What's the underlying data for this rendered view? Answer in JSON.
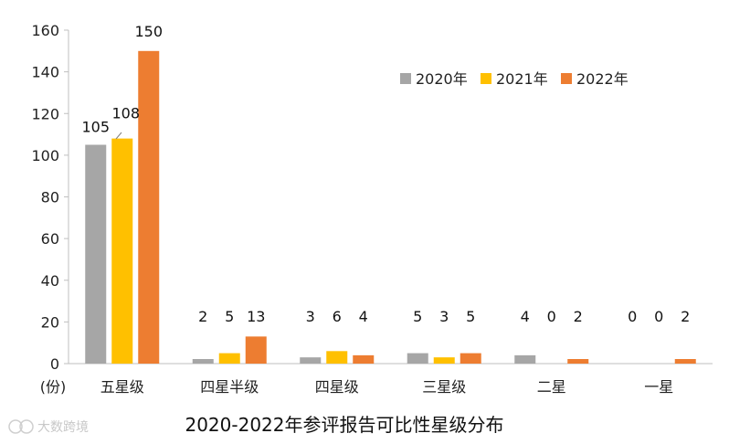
{
  "chart_data": {
    "type": "bar",
    "title": "2020-2022年参评报告可比性星级分布",
    "unit_label": "(份)",
    "categories": [
      "五星级",
      "四星半级",
      "四星级",
      "三星级",
      "二星",
      "一星"
    ],
    "series": [
      {
        "name": "2020年",
        "color": "#a6a6a6",
        "values": [
          105,
          2,
          3,
          5,
          4,
          0
        ]
      },
      {
        "name": "2021年",
        "color": "#ffc000",
        "values": [
          108,
          5,
          6,
          3,
          0,
          0
        ]
      },
      {
        "name": "2022年",
        "color": "#ed7d31",
        "values": [
          150,
          13,
          4,
          5,
          2,
          2
        ]
      }
    ],
    "ylim": [
      0,
      160
    ],
    "yticks": [
      0,
      20,
      40,
      60,
      80,
      100,
      120,
      140,
      160
    ],
    "legend_position": "top-right",
    "grid": false
  },
  "watermark": {
    "text": "大数跨境",
    "icon": "brand-logo-icon"
  }
}
